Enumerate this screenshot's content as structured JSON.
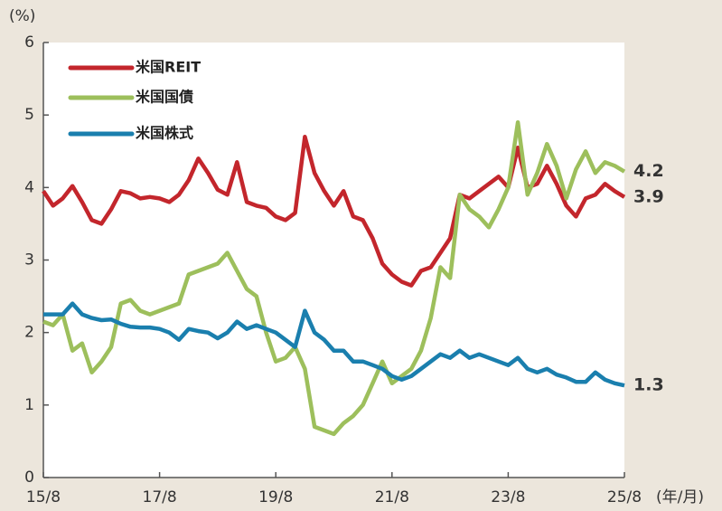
{
  "chart_data": {
    "type": "line",
    "y_unit_label": "(%)",
    "x_unit_label": "(年/月)",
    "categories": [
      "15/8",
      null,
      null,
      null,
      null,
      null,
      null,
      null,
      null,
      null,
      null,
      null,
      "17/8",
      null,
      null,
      null,
      null,
      null,
      null,
      null,
      null,
      null,
      null,
      null,
      "19/8",
      null,
      null,
      null,
      null,
      null,
      null,
      null,
      null,
      null,
      null,
      null,
      "21/8",
      null,
      null,
      null,
      null,
      null,
      null,
      null,
      null,
      null,
      null,
      null,
      "23/8",
      null,
      null,
      null,
      null,
      null,
      null,
      null,
      null,
      null,
      null,
      null,
      "25/8"
    ],
    "series": [
      {
        "name": "米国REIT",
        "color": "#c3262c",
        "end_label": "3.9",
        "values": [
          3.95,
          3.75,
          3.85,
          4.02,
          3.8,
          3.55,
          3.5,
          3.7,
          3.95,
          3.92,
          3.85,
          3.87,
          3.85,
          3.8,
          3.9,
          4.1,
          4.4,
          4.2,
          3.97,
          3.9,
          4.35,
          3.8,
          3.75,
          3.72,
          3.6,
          3.55,
          3.65,
          4.7,
          4.2,
          3.95,
          3.75,
          3.95,
          3.6,
          3.55,
          3.3,
          2.95,
          2.8,
          2.7,
          2.65,
          2.85,
          2.9,
          3.1,
          3.3,
          3.9,
          3.85,
          3.95,
          4.05,
          4.15,
          4.0,
          4.55,
          4.0,
          4.05,
          4.3,
          4.05,
          3.75,
          3.6,
          3.85,
          3.9,
          4.05,
          3.95,
          3.87
        ]
      },
      {
        "name": "米国国債",
        "color": "#9dbf5c",
        "end_label": "4.2",
        "values": [
          2.15,
          2.1,
          2.25,
          1.75,
          1.85,
          1.45,
          1.6,
          1.8,
          2.4,
          2.45,
          2.3,
          2.25,
          2.3,
          2.35,
          2.4,
          2.8,
          2.85,
          2.9,
          2.95,
          3.1,
          2.85,
          2.6,
          2.5,
          2.0,
          1.6,
          1.65,
          1.8,
          1.5,
          0.7,
          0.65,
          0.6,
          0.75,
          0.85,
          1.0,
          1.3,
          1.6,
          1.3,
          1.4,
          1.5,
          1.75,
          2.2,
          2.9,
          2.75,
          3.9,
          3.7,
          3.6,
          3.45,
          3.7,
          4.0,
          4.9,
          3.9,
          4.2,
          4.6,
          4.3,
          3.85,
          4.25,
          4.5,
          4.2,
          4.35,
          4.3,
          4.22
        ]
      },
      {
        "name": "米国株式",
        "color": "#1a7fae",
        "end_label": "1.3",
        "values": [
          2.25,
          2.25,
          2.25,
          2.4,
          2.25,
          2.2,
          2.17,
          2.18,
          2.12,
          2.08,
          2.07,
          2.07,
          2.05,
          2.0,
          1.9,
          2.05,
          2.02,
          2.0,
          1.92,
          2.0,
          2.15,
          2.05,
          2.1,
          2.05,
          2.0,
          1.9,
          1.8,
          2.3,
          2.0,
          1.9,
          1.75,
          1.75,
          1.6,
          1.6,
          1.55,
          1.5,
          1.4,
          1.35,
          1.4,
          1.5,
          1.6,
          1.7,
          1.65,
          1.75,
          1.65,
          1.7,
          1.65,
          1.6,
          1.55,
          1.65,
          1.5,
          1.45,
          1.5,
          1.42,
          1.38,
          1.32,
          1.32,
          1.45,
          1.35,
          1.3,
          1.27
        ]
      }
    ],
    "ylim": [
      0,
      6
    ],
    "yticks": [
      0,
      1,
      2,
      3,
      4,
      5,
      6
    ],
    "grid": false,
    "legend": "top-left"
  }
}
